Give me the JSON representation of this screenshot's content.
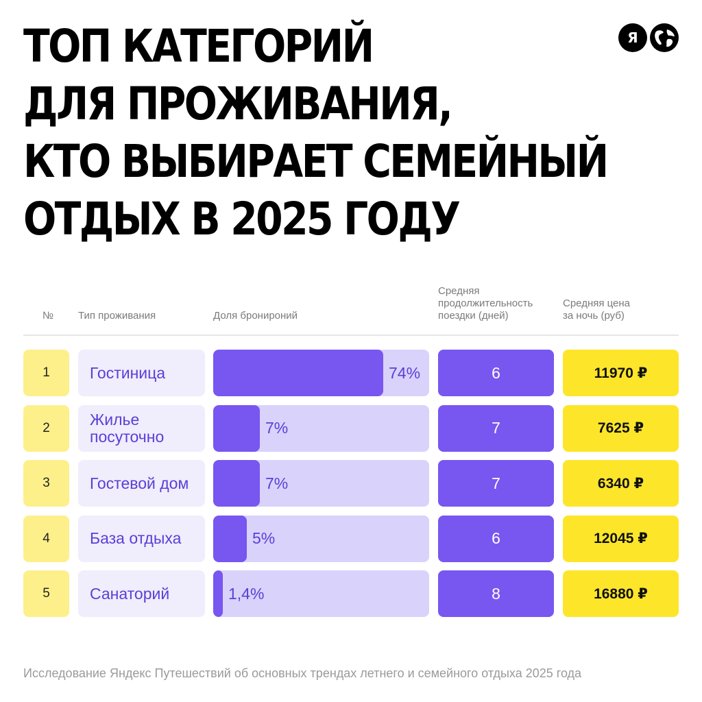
{
  "title_lines": [
    "ТОП КАТЕГОРИЙ",
    "ДЛЯ ПРОЖИВАНИЯ,",
    "КТО ВЫБИРАЕТ СЕМЕЙНЫЙ",
    "ОТДЫХ В 2025 ГОДУ"
  ],
  "logos": {
    "ya_letter": "Я",
    "ya_icon": "yandex-logo-icon",
    "globe_icon": "globe-icon"
  },
  "headers": {
    "num": "№",
    "type": "Тип проживания",
    "share": "Доля бронироний",
    "duration": [
      "Средняя",
      "продолжительность",
      "поездки (дней)"
    ],
    "price": [
      "Средняя цена",
      "за ночь (руб)"
    ]
  },
  "colors": {
    "purple": "#7856f0",
    "light_purple": "#d9d2fb",
    "lavender": "#f0edfc",
    "yellow": "#fde52a",
    "pale_yellow": "#fdf08a",
    "text_purple": "#5a3fd6"
  },
  "chart_data": {
    "type": "table",
    "columns": [
      "№",
      "Тип проживания",
      "Доля бронироний",
      "Средняя продолжительность поездки (дней)",
      "Средняя цена за ночь (руб)"
    ],
    "rows": [
      {
        "num": "1",
        "type": [
          "Гостиница"
        ],
        "share": 74,
        "share_label": "74%",
        "duration": "6",
        "price": "11970 ₽"
      },
      {
        "num": "2",
        "type": [
          "Жилье",
          "посуточно"
        ],
        "share": 7,
        "share_label": "7%",
        "duration": "7",
        "price": "7625 ₽"
      },
      {
        "num": "3",
        "type": [
          "Гостевой дом"
        ],
        "share": 7,
        "share_label": "7%",
        "duration": "7",
        "price": "6340 ₽"
      },
      {
        "num": "4",
        "type": [
          "База отдыха"
        ],
        "share": 5,
        "share_label": "5%",
        "duration": "6",
        "price": "12045 ₽"
      },
      {
        "num": "5",
        "type": [
          "Санаторий"
        ],
        "share": 1.4,
        "share_label": "1,4%",
        "duration": "8",
        "price": "16880 ₽"
      }
    ]
  },
  "footer": "Исследование Яндекс Путешествий об основных трендах летнего и семейного отдыха 2025 года"
}
